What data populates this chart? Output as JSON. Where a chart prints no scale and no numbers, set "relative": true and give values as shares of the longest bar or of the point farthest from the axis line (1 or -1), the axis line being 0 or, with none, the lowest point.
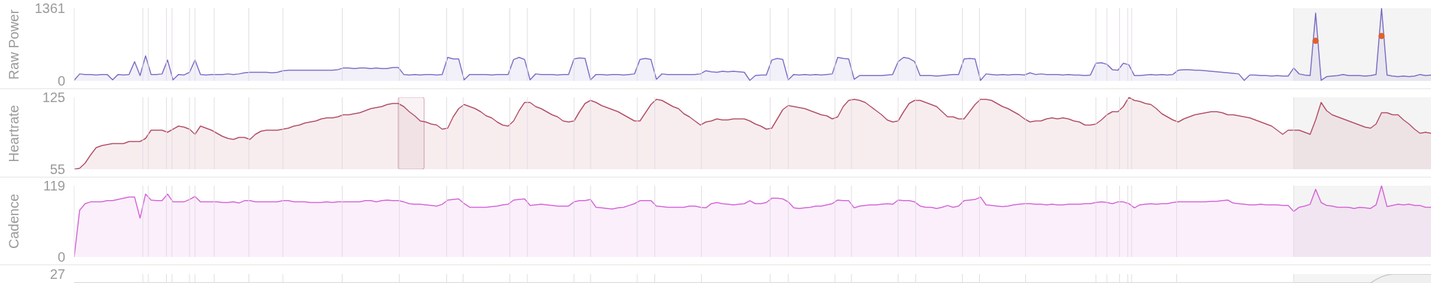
{
  "chart_data": [
    {
      "type": "area",
      "ylabel": "Raw Power",
      "categories": [
        null,
        null,
        null,
        null,
        null,
        null,
        null,
        null,
        null,
        null,
        null,
        null,
        null,
        null,
        null,
        null,
        null,
        null,
        null,
        null,
        null,
        null,
        null,
        null,
        null,
        null,
        null,
        null,
        null,
        null,
        null,
        null,
        null,
        null,
        null,
        null,
        null,
        null,
        null,
        null,
        null,
        null,
        null,
        null,
        null,
        null,
        null,
        null,
        null,
        null,
        null,
        null,
        null,
        null,
        null,
        null,
        null,
        null,
        null,
        null,
        null,
        null,
        null,
        null,
        null,
        null,
        null,
        null,
        null,
        null,
        null,
        null,
        null,
        null,
        null,
        null,
        null,
        null,
        null,
        null,
        null,
        null,
        null,
        null,
        null,
        null,
        null,
        null,
        null,
        null,
        null,
        null,
        null,
        null,
        null,
        null,
        null,
        null,
        null,
        null,
        null,
        null,
        null,
        null,
        null,
        null,
        null,
        null,
        null,
        null,
        null,
        null,
        null,
        null,
        null,
        null,
        null,
        null,
        null,
        null,
        null,
        null,
        null,
        null,
        null,
        null,
        null,
        null,
        null,
        null,
        null,
        null,
        null,
        null,
        null,
        null,
        null,
        null,
        null,
        null,
        null,
        null,
        null,
        null,
        null,
        null,
        null,
        null,
        null,
        null,
        null,
        null,
        null,
        null,
        null,
        null,
        null,
        null,
        null,
        null,
        null,
        null,
        null,
        null,
        null,
        null,
        null,
        null,
        null,
        null,
        null,
        null,
        null,
        null,
        null,
        null,
        null,
        null,
        null,
        null,
        null,
        null,
        null,
        null,
        null,
        null,
        null,
        null,
        null,
        null,
        null,
        null,
        null,
        null,
        null,
        null,
        null,
        null,
        null,
        null,
        null,
        null,
        null,
        null,
        null,
        null,
        null,
        null,
        null,
        null,
        null,
        null,
        null,
        null,
        null,
        null,
        null,
        null,
        null,
        null,
        null,
        null,
        null,
        null,
        null,
        null,
        null,
        null,
        null,
        null,
        null,
        null,
        null,
        null,
        null,
        null,
        null,
        null,
        null,
        null,
        null,
        null,
        null,
        null,
        null,
        null,
        null,
        null
      ],
      "ylim": [
        0,
        1361
      ],
      "yticks": [
        0,
        1361
      ],
      "series": [
        {
          "color": "#7b6cc4",
          "values": [
            10,
            130,
            120,
            120,
            110,
            120,
            120,
            20,
            120,
            110,
            120,
            360,
            100,
            470,
            120,
            120,
            130,
            390,
            20,
            120,
            110,
            160,
            390,
            120,
            110,
            120,
            120,
            120,
            130,
            120,
            130,
            150,
            160,
            160,
            160,
            160,
            150,
            160,
            190,
            200,
            200,
            200,
            200,
            200,
            200,
            200,
            200,
            200,
            210,
            240,
            240,
            230,
            240,
            240,
            230,
            240,
            230,
            230,
            250,
            250,
            120,
            110,
            120,
            110,
            120,
            120,
            110,
            120,
            440,
            410,
            410,
            20,
            120,
            120,
            120,
            120,
            110,
            120,
            120,
            120,
            400,
            440,
            400,
            20,
            130,
            120,
            120,
            120,
            110,
            120,
            120,
            410,
            430,
            420,
            20,
            120,
            120,
            110,
            120,
            120,
            110,
            120,
            130,
            400,
            420,
            400,
            30,
            130,
            120,
            120,
            120,
            120,
            120,
            120,
            130,
            190,
            170,
            160,
            180,
            170,
            180,
            170,
            160,
            10,
            100,
            110,
            110,
            390,
            420,
            400,
            20,
            120,
            110,
            120,
            110,
            120,
            110,
            120,
            130,
            440,
            420,
            410,
            30,
            100,
            100,
            100,
            100,
            100,
            110,
            120,
            360,
            440,
            420,
            360,
            100,
            100,
            100,
            90,
            100,
            110,
            120,
            120,
            410,
            420,
            410,
            10,
            130,
            120,
            110,
            120,
            110,
            120,
            120,
            110,
            150,
            120,
            130,
            120,
            120,
            120,
            110,
            120,
            110,
            110,
            100,
            110,
            330,
            340,
            310,
            210,
            200,
            330,
            300,
            100,
            100,
            110,
            120,
            110,
            120,
            110,
            120,
            200,
            210,
            210,
            200,
            200,
            190,
            180,
            170,
            160,
            150,
            140,
            130,
            10,
            110,
            110,
            100,
            100,
            90,
            100,
            90,
            90,
            240,
            130,
            110,
            100,
            1270,
            10,
            80,
            90,
            100,
            120,
            100,
            100,
            100,
            90,
            100,
            120,
            1361,
            110,
            90,
            80,
            90,
            80,
            90,
            120,
            100,
            110
          ]
        },
        {
          "type": "scatter",
          "marker": "circle",
          "color": "#e0602a",
          "values": [
            null,
            null,
            null,
            null,
            null,
            null,
            null,
            null,
            null,
            null,
            null,
            null,
            null,
            null,
            null,
            null,
            null,
            null,
            null,
            null,
            null,
            null,
            null,
            null,
            null,
            null,
            null,
            null,
            null,
            null,
            null,
            null,
            null,
            null,
            null,
            null,
            null,
            null,
            null,
            null,
            null,
            null,
            null,
            null,
            null,
            null,
            null,
            null,
            null,
            null,
            null,
            null,
            null,
            null,
            null,
            null,
            null,
            null,
            null,
            null,
            null,
            null,
            null,
            null,
            null,
            null,
            null,
            null,
            null,
            null,
            null,
            null,
            null,
            null,
            null,
            null,
            null,
            null,
            null,
            null,
            null,
            null,
            null,
            null,
            null,
            null,
            null,
            null,
            null,
            null,
            null,
            null,
            null,
            null,
            null,
            null,
            null,
            null,
            null,
            null,
            null,
            null,
            null,
            null,
            null,
            null,
            null,
            null,
            null,
            null,
            null,
            null,
            null,
            null,
            null,
            null,
            null,
            null,
            null,
            null,
            null,
            null,
            null,
            null,
            null,
            null,
            null,
            null,
            null,
            null,
            null,
            null,
            null,
            null,
            null,
            null,
            null,
            null,
            null,
            null,
            null,
            null,
            null,
            null,
            null,
            null,
            null,
            null,
            null,
            null,
            null,
            null,
            null,
            null,
            null,
            null,
            null,
            null,
            null,
            null,
            null,
            null,
            null,
            null,
            null,
            null,
            null,
            null,
            null,
            null,
            null,
            null,
            null,
            null,
            null,
            null,
            null,
            null,
            null,
            null,
            null,
            null,
            null,
            null,
            null,
            null,
            null,
            null,
            null,
            null,
            null,
            null,
            null,
            null,
            null,
            null,
            null,
            null,
            null,
            null,
            null,
            null,
            null,
            null,
            null,
            null,
            null,
            null,
            null,
            null,
            null,
            null,
            null,
            null,
            null,
            null,
            null,
            null,
            null,
            null,
            null,
            null,
            null,
            null,
            null,
            null,
            750,
            null,
            null,
            null,
            null,
            null,
            null,
            null,
            null,
            null,
            null,
            null,
            840,
            null,
            null,
            null,
            null,
            null,
            null,
            null,
            null,
            null
          ]
        }
      ]
    },
    {
      "type": "area",
      "ylabel": "Heartrate",
      "categories": [
        null,
        null,
        null,
        null,
        null,
        null,
        null,
        null,
        null,
        null,
        null,
        null,
        null,
        null,
        null,
        null,
        null,
        null,
        null,
        null,
        null,
        null,
        null,
        null,
        null,
        null,
        null,
        null,
        null,
        null,
        null,
        null,
        null,
        null,
        null,
        null,
        null,
        null,
        null,
        null,
        null,
        null,
        null,
        null,
        null,
        null,
        null,
        null,
        null,
        null,
        null,
        null,
        null,
        null,
        null,
        null,
        null,
        null,
        null,
        null,
        null,
        null,
        null,
        null,
        null,
        null,
        null,
        null,
        null,
        null,
        null,
        null,
        null,
        null,
        null,
        null,
        null,
        null,
        null,
        null,
        null,
        null,
        null,
        null,
        null,
        null,
        null,
        null,
        null,
        null,
        null,
        null,
        null,
        null,
        null,
        null,
        null,
        null,
        null,
        null,
        null,
        null,
        null,
        null,
        null,
        null,
        null,
        null,
        null,
        null,
        null,
        null,
        null,
        null,
        null,
        null,
        null,
        null,
        null,
        null,
        null,
        null,
        null,
        null,
        null,
        null,
        null,
        null,
        null,
        null,
        null,
        null,
        null,
        null,
        null,
        null,
        null,
        null,
        null,
        null,
        null,
        null,
        null,
        null,
        null,
        null,
        null,
        null,
        null,
        null,
        null,
        null,
        null,
        null,
        null,
        null,
        null,
        null,
        null,
        null,
        null,
        null,
        null,
        null,
        null,
        null,
        null,
        null,
        null,
        null,
        null,
        null,
        null,
        null,
        null,
        null,
        null,
        null,
        null,
        null,
        null,
        null,
        null,
        null,
        null,
        null,
        null,
        null,
        null,
        null,
        null,
        null,
        null,
        null,
        null,
        null,
        null,
        null,
        null,
        null,
        null,
        null,
        null,
        null,
        null,
        null,
        null,
        null,
        null,
        null,
        null,
        null,
        null,
        null,
        null,
        null,
        null,
        null,
        null,
        null,
        null,
        null,
        null,
        null,
        null,
        null,
        null,
        null,
        null,
        null,
        null,
        null,
        null,
        null,
        null,
        null,
        null,
        null,
        null,
        null,
        null,
        null,
        null,
        null,
        null,
        null,
        null,
        null
      ],
      "ylim": [
        55,
        125
      ],
      "yticks": [
        55,
        125
      ],
      "series": [
        {
          "color": "#b24c64",
          "values": [
            55,
            56,
            61,
            69,
            76,
            78,
            79,
            80,
            80,
            80,
            82,
            82,
            82,
            85,
            93,
            93,
            93,
            91,
            94,
            97,
            96,
            94,
            89,
            97,
            95,
            93,
            90,
            87,
            85,
            84,
            86,
            86,
            84,
            89,
            92,
            93,
            93,
            93,
            94,
            95,
            97,
            98,
            100,
            101,
            102,
            104,
            105,
            105,
            106,
            108,
            108,
            109,
            110,
            112,
            114,
            115,
            116,
            118,
            119,
            119,
            116,
            111,
            107,
            102,
            101,
            99,
            98,
            94,
            95,
            106,
            114,
            118,
            116,
            114,
            111,
            107,
            105,
            101,
            98,
            97,
            102,
            112,
            120,
            120,
            116,
            114,
            111,
            108,
            106,
            102,
            101,
            102,
            111,
            119,
            122,
            120,
            117,
            115,
            113,
            111,
            108,
            105,
            102,
            102,
            110,
            118,
            123,
            122,
            119,
            116,
            114,
            109,
            106,
            102,
            98,
            101,
            102,
            104,
            103,
            103,
            104,
            104,
            104,
            102,
            99,
            97,
            94,
            95,
            104,
            113,
            117,
            116,
            115,
            114,
            112,
            110,
            108,
            107,
            104,
            106,
            116,
            122,
            123,
            122,
            120,
            116,
            112,
            108,
            103,
            101,
            102,
            111,
            119,
            122,
            122,
            120,
            118,
            116,
            111,
            106,
            106,
            104,
            104,
            111,
            118,
            123,
            123,
            122,
            119,
            116,
            114,
            111,
            108,
            104,
            101,
            102,
            102,
            104,
            105,
            104,
            105,
            104,
            102,
            101,
            98,
            98,
            99,
            103,
            108,
            111,
            111,
            116,
            125,
            122,
            121,
            119,
            118,
            114,
            109,
            106,
            103,
            101,
            104,
            106,
            108,
            109,
            110,
            111,
            111,
            110,
            108,
            108,
            107,
            106,
            105,
            103,
            101,
            99,
            97,
            93,
            89,
            93,
            93,
            93,
            91,
            89,
            103,
            120,
            112,
            108,
            106,
            104,
            102,
            100,
            98,
            96,
            95,
            99,
            110,
            110,
            108,
            108,
            103,
            99,
            94,
            90,
            91,
            90
          ]
        }
      ]
    },
    {
      "type": "area",
      "ylabel": "Cadence",
      "categories": [
        null,
        null,
        null,
        null,
        null,
        null,
        null,
        null,
        null,
        null,
        null,
        null,
        null,
        null,
        null,
        null,
        null,
        null,
        null,
        null,
        null,
        null,
        null,
        null,
        null,
        null,
        null,
        null,
        null,
        null,
        null,
        null,
        null,
        null,
        null,
        null,
        null,
        null,
        null,
        null,
        null,
        null,
        null,
        null,
        null,
        null,
        null,
        null,
        null,
        null,
        null,
        null,
        null,
        null,
        null,
        null,
        null,
        null,
        null,
        null,
        null,
        null,
        null,
        null,
        null,
        null,
        null,
        null,
        null,
        null,
        null,
        null,
        null,
        null,
        null,
        null,
        null,
        null,
        null,
        null,
        null,
        null,
        null,
        null,
        null,
        null,
        null,
        null,
        null,
        null,
        null,
        null,
        null,
        null,
        null,
        null,
        null,
        null,
        null,
        null,
        null,
        null,
        null,
        null,
        null,
        null,
        null,
        null,
        null,
        null,
        null,
        null,
        null,
        null,
        null,
        null,
        null,
        null,
        null,
        null,
        null,
        null,
        null,
        null,
        null,
        null,
        null,
        null,
        null,
        null,
        null,
        null,
        null,
        null,
        null,
        null,
        null,
        null,
        null,
        null,
        null,
        null,
        null,
        null,
        null,
        null,
        null,
        null,
        null,
        null,
        null,
        null,
        null,
        null,
        null,
        null,
        null,
        null,
        null,
        null,
        null,
        null,
        null,
        null,
        null,
        null,
        null,
        null,
        null,
        null,
        null,
        null,
        null,
        null,
        null,
        null,
        null,
        null,
        null,
        null,
        null,
        null,
        null,
        null,
        null,
        null,
        null,
        null,
        null,
        null,
        null,
        null,
        null,
        null,
        null,
        null,
        null,
        null,
        null,
        null,
        null,
        null,
        null,
        null,
        null,
        null,
        null,
        null,
        null,
        null,
        null,
        null,
        null,
        null,
        null,
        null,
        null,
        null,
        null,
        null,
        null,
        null,
        null,
        null,
        null,
        null,
        null,
        null,
        null,
        null,
        null,
        null,
        null,
        null,
        null,
        null,
        null,
        null,
        null,
        null,
        null,
        null,
        null,
        null,
        null,
        null,
        null,
        null
      ],
      "ylim": [
        0,
        119
      ],
      "yticks": [
        0,
        119
      ],
      "series": [
        {
          "color": "#d462d8",
          "values": [
            0,
            78,
            89,
            92,
            92,
            92,
            94,
            94,
            96,
            98,
            100,
            100,
            65,
            105,
            95,
            94,
            94,
            105,
            92,
            92,
            92,
            96,
            101,
            92,
            92,
            92,
            92,
            91,
            91,
            92,
            90,
            94,
            94,
            92,
            92,
            92,
            92,
            92,
            94,
            94,
            92,
            92,
            92,
            91,
            91,
            91,
            92,
            91,
            92,
            92,
            92,
            92,
            92,
            94,
            94,
            92,
            94,
            95,
            94,
            94,
            92,
            89,
            88,
            88,
            87,
            86,
            85,
            88,
            95,
            96,
            97,
            89,
            83,
            83,
            83,
            83,
            84,
            85,
            87,
            88,
            95,
            96,
            97,
            86,
            87,
            88,
            87,
            86,
            85,
            85,
            85,
            92,
            94,
            94,
            96,
            83,
            82,
            81,
            80,
            82,
            83,
            86,
            89,
            94,
            94,
            94,
            85,
            84,
            83,
            83,
            83,
            83,
            85,
            85,
            83,
            82,
            89,
            91,
            89,
            88,
            87,
            88,
            89,
            94,
            89,
            89,
            91,
            98,
            98,
            97,
            92,
            82,
            81,
            82,
            83,
            85,
            85,
            87,
            89,
            95,
            94,
            94,
            82,
            85,
            86,
            87,
            87,
            88,
            89,
            88,
            95,
            94,
            94,
            92,
            85,
            83,
            83,
            81,
            83,
            86,
            83,
            85,
            94,
            95,
            96,
            100,
            87,
            86,
            85,
            84,
            85,
            87,
            88,
            89,
            89,
            88,
            88,
            87,
            88,
            87,
            87,
            88,
            88,
            88,
            89,
            89,
            91,
            92,
            91,
            89,
            92,
            92,
            89,
            82,
            87,
            88,
            89,
            88,
            89,
            89,
            91,
            92,
            92,
            92,
            92,
            92,
            92,
            93,
            93,
            94,
            95,
            90,
            89,
            88,
            87,
            87,
            88,
            87,
            87,
            87,
            86,
            86,
            76,
            83,
            85,
            88,
            113,
            91,
            86,
            85,
            83,
            83,
            83,
            81,
            83,
            82,
            81,
            87,
            119,
            84,
            86,
            88,
            87,
            88,
            86,
            86,
            83,
            83
          ]
        }
      ]
    },
    {
      "type": "area",
      "relative": true,
      "annotations": [
        "27"
      ],
      "categories": [
        null,
        null,
        null,
        null,
        null,
        null,
        null,
        null,
        null,
        null,
        null,
        null,
        null,
        null,
        null,
        null,
        null,
        null,
        null,
        null,
        null,
        null,
        null,
        null,
        null,
        null,
        null,
        null,
        null,
        null,
        null,
        null,
        null,
        null,
        null,
        null,
        null,
        null,
        null,
        null,
        null,
        null,
        null,
        null,
        null,
        null,
        null,
        null,
        null,
        null,
        null,
        null,
        null,
        null,
        null,
        null,
        null,
        null,
        null,
        null,
        null,
        null,
        null,
        null,
        null,
        null,
        null,
        null,
        null,
        null,
        null,
        null,
        null,
        null,
        null,
        null,
        null,
        null,
        null,
        null,
        null,
        null,
        null,
        null,
        null,
        null,
        null,
        null,
        null,
        null,
        null,
        null,
        null,
        null,
        null,
        null,
        null,
        null,
        null,
        null,
        null,
        null,
        null,
        null,
        null,
        null,
        null,
        null,
        null,
        null,
        null,
        null,
        null,
        null,
        null,
        null,
        null,
        null,
        null,
        null,
        null,
        null,
        null,
        null,
        null,
        null,
        null,
        null,
        null,
        null,
        null,
        null,
        null,
        null,
        null,
        null,
        null,
        null,
        null,
        null,
        null,
        null,
        null,
        null,
        null,
        null,
        null,
        null,
        null,
        null,
        null,
        null,
        null,
        null,
        null,
        null,
        null,
        null,
        null,
        null,
        null,
        null,
        null,
        null,
        null,
        null,
        null,
        null,
        null,
        null,
        null,
        null,
        null,
        null,
        null,
        null,
        null,
        null,
        null,
        null,
        null,
        null,
        null,
        null,
        null,
        null,
        null,
        null,
        null,
        null,
        null,
        null,
        null,
        null,
        null,
        null,
        null,
        null,
        null,
        null,
        null,
        null,
        null,
        null,
        null,
        null,
        null,
        null,
        null,
        null,
        null,
        null,
        null,
        null,
        null,
        null,
        null,
        null,
        null,
        null,
        null,
        null,
        null,
        null,
        null,
        null,
        null,
        null,
        null,
        null,
        null,
        null,
        null,
        null,
        null,
        null,
        null,
        null,
        null,
        null,
        null,
        null,
        null,
        null,
        null,
        null,
        null,
        null
      ],
      "color": "#c8c8c8",
      "values": [
        0,
        0,
        0,
        0,
        0,
        0,
        0,
        0,
        0,
        0,
        0,
        0,
        0,
        0,
        0,
        0,
        0,
        0,
        0,
        0,
        0,
        0,
        0,
        0,
        0,
        0,
        0,
        0,
        0,
        0,
        0,
        0,
        0,
        0,
        0,
        0,
        0,
        0,
        0,
        0,
        0,
        0,
        0,
        0,
        0,
        0,
        0,
        0,
        0,
        0,
        0,
        0,
        0,
        0,
        0,
        0,
        0,
        0,
        0,
        0,
        0,
        0,
        0,
        0,
        0,
        0,
        0,
        0,
        0,
        0,
        0,
        0,
        0,
        0,
        0,
        0,
        0,
        0,
        0,
        0,
        0,
        0,
        0,
        0,
        0,
        0,
        0,
        0,
        0,
        0,
        0,
        0,
        0,
        0,
        0,
        0,
        0,
        0,
        0,
        0,
        0,
        0,
        0,
        0,
        0,
        0,
        0,
        0,
        0,
        0,
        0,
        0,
        0,
        0,
        0,
        0,
        0,
        0,
        0,
        0,
        0,
        0,
        0,
        0,
        0,
        0,
        0,
        0,
        0,
        0,
        0,
        0,
        0,
        0,
        0,
        0,
        0,
        0,
        0,
        0,
        0,
        0,
        0,
        0,
        0,
        0,
        0,
        0,
        0,
        0,
        0,
        0,
        0,
        0,
        0,
        0,
        0,
        0,
        0,
        0,
        0,
        0,
        0,
        0,
        0,
        0,
        0,
        0,
        0,
        0,
        0,
        0,
        0,
        0,
        0,
        0,
        0,
        0,
        0,
        0,
        0,
        0,
        0,
        0,
        0,
        0,
        0,
        0,
        0,
        0,
        0,
        0,
        0,
        0,
        0,
        0,
        0,
        0,
        0,
        0,
        0,
        0,
        0,
        0,
        0,
        0,
        0,
        0,
        0,
        0,
        0,
        0,
        0,
        0,
        0,
        0,
        0,
        0,
        0,
        0,
        0,
        0,
        0,
        0,
        0,
        0,
        0,
        0,
        0,
        0,
        0,
        0,
        0,
        0,
        0,
        0,
        0,
        0.4,
        0.7,
        0.9,
        1,
        1,
        1,
        1,
        1,
        1,
        1,
        1
      ]
    }
  ]
}
